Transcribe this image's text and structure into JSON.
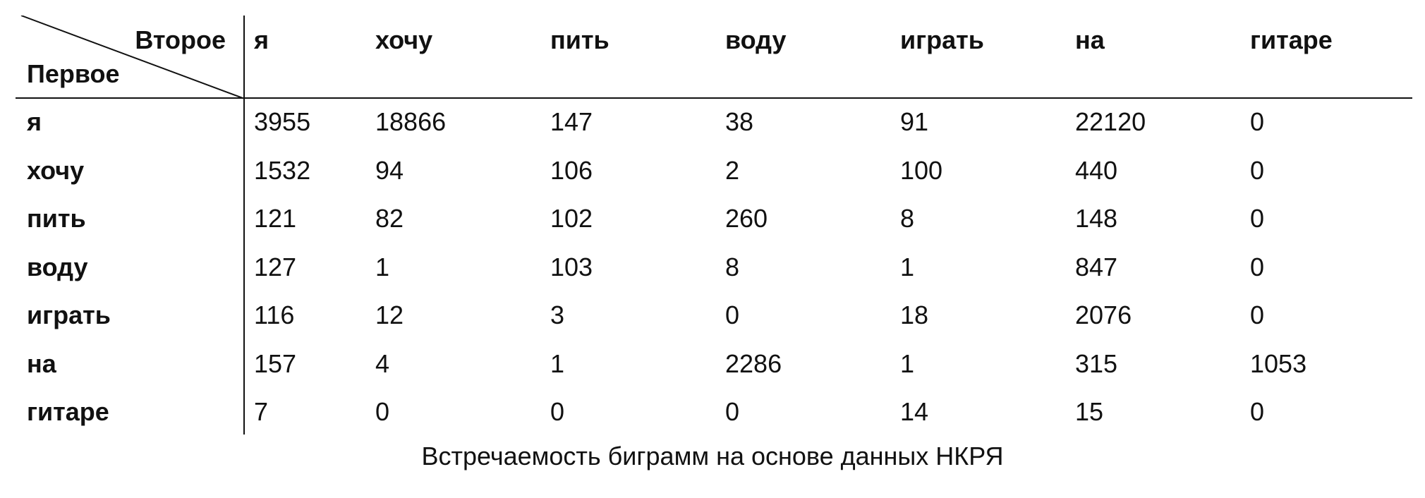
{
  "table": {
    "corner_column_label": "Второе",
    "corner_row_label": "Первое",
    "columns": [
      "я",
      "хочу",
      "пить",
      "воду",
      "играть",
      "на",
      "гитаре"
    ],
    "rows": [
      {
        "label": "я",
        "values": [
          "3955",
          "18866",
          "147",
          "38",
          "91",
          "22120",
          "0"
        ]
      },
      {
        "label": "хочу",
        "values": [
          "1532",
          "94",
          "106",
          "2",
          "100",
          "440",
          "0"
        ]
      },
      {
        "label": "пить",
        "values": [
          "121",
          "82",
          "102",
          "260",
          "8",
          "148",
          "0"
        ]
      },
      {
        "label": "воду",
        "values": [
          "127",
          "1",
          "103",
          "8",
          "1",
          "847",
          "0"
        ]
      },
      {
        "label": "играть",
        "values": [
          "116",
          "12",
          "3",
          "0",
          "18",
          "2076",
          "0"
        ]
      },
      {
        "label": "на",
        "values": [
          "157",
          "4",
          "1",
          "2286",
          "1",
          "315",
          "1053"
        ]
      },
      {
        "label": "гитаре",
        "values": [
          "7",
          "0",
          "0",
          "0",
          "14",
          "15",
          "0"
        ]
      }
    ]
  },
  "caption": "Встречаемость биграмм на основе данных НКРЯ"
}
